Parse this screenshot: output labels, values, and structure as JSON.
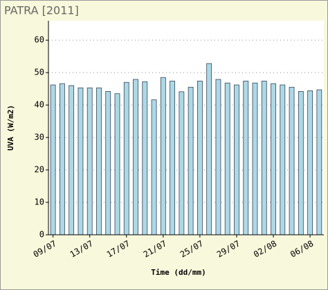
{
  "chart_data": {
    "type": "bar",
    "title": "PATRA [2011]",
    "x_label": "Time (dd/mm)",
    "y_label": "UVA (W/m2)",
    "categories": [
      "09/07",
      null,
      null,
      null,
      "13/07",
      null,
      null,
      null,
      "17/07",
      null,
      null,
      null,
      "21/07",
      null,
      null,
      null,
      "25/07",
      null,
      null,
      null,
      "29/07",
      null,
      null,
      null,
      "02/08",
      null,
      null,
      null,
      "06/08",
      null
    ],
    "values": [
      46.2,
      46.6,
      46.0,
      45.3,
      45.3,
      45.3,
      44.2,
      43.5,
      47.0,
      47.9,
      47.2,
      41.6,
      48.5,
      47.4,
      44.1,
      45.5,
      47.4,
      52.8,
      47.9,
      46.8,
      46.2,
      47.4,
      46.8,
      47.4,
      46.6,
      46.2,
      45.5,
      44.2,
      44.4,
      44.7
    ],
    "color": "#add8e6",
    "ylim": [
      0,
      66
    ],
    "yticks": [
      0,
      10,
      20,
      30,
      40,
      50,
      60
    ],
    "grid": true
  }
}
